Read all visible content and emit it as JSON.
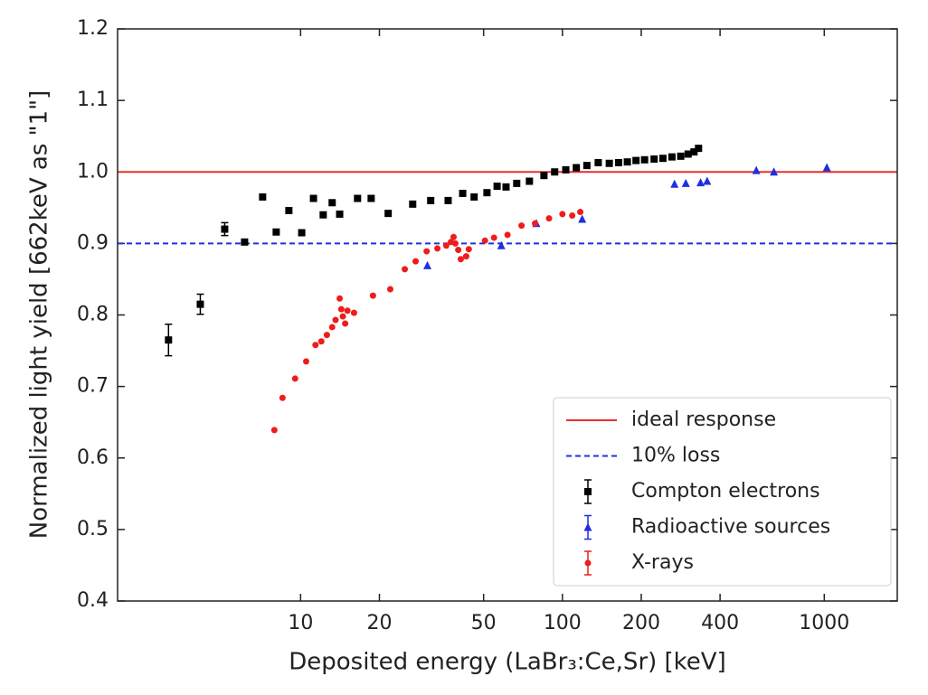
{
  "chart_data": {
    "type": "scatter",
    "xlabel": "Deposited energy (LaBr₃:Ce,Sr) [keV]",
    "ylabel": "Normalized light yield [662keV as \"1\"]",
    "xscale": "log",
    "xlim": [
      2,
      1900
    ],
    "ylim": [
      0.4,
      1.2
    ],
    "xticks": [
      10,
      20,
      50,
      100,
      200,
      400,
      1000
    ],
    "yticks": [
      0.4,
      0.5,
      0.6,
      0.7,
      0.8,
      0.9,
      {
        "value": 1,
        "label": "1.0"
      },
      1.1,
      1.2
    ],
    "legend": "lower right",
    "lines": [
      {
        "name": "ideal response",
        "value": 1,
        "color": "#e8302c",
        "dash": "solid"
      },
      {
        "name": "10% loss",
        "value": 0.9,
        "color": "#1f2fe0",
        "dash": "dashed"
      }
    ],
    "series": [
      {
        "name": "Compton electrons",
        "color": "#000000",
        "marker": "square",
        "x": [
          3.13,
          4.14,
          5.13,
          6.11,
          7.16,
          8.07,
          9.02,
          10.1,
          11.2,
          12.2,
          13.2,
          14.1,
          16.5,
          18.6,
          21.6,
          26.8,
          31.4,
          36.6,
          41.6,
          46.0,
          51.5,
          56.3,
          60.9,
          66.9,
          74.8,
          85.0,
          93.4,
          103,
          113,
          124,
          137,
          151,
          164,
          177,
          191,
          206,
          224,
          242,
          262,
          283,
          302,
          318,
          331
        ],
        "values": [
          0.765,
          0.815,
          0.92,
          0.902,
          0.965,
          0.916,
          0.946,
          0.915,
          0.963,
          0.94,
          0.957,
          0.941,
          0.963,
          0.963,
          0.942,
          0.955,
          0.96,
          0.96,
          0.97,
          0.965,
          0.971,
          0.98,
          0.979,
          0.984,
          0.987,
          0.995,
          1.0,
          1.003,
          1.006,
          1.009,
          1.013,
          1.012,
          1.013,
          1.014,
          1.016,
          1.017,
          1.018,
          1.019,
          1.021,
          1.022,
          1.025,
          1.028,
          1.033
        ],
        "errors": [
          0.022,
          0.014,
          0.009,
          null,
          null,
          null,
          null,
          null,
          null,
          null,
          null,
          null,
          null,
          null,
          null,
          null,
          null,
          null,
          null,
          null,
          null,
          null,
          null,
          null,
          null,
          null,
          null,
          null,
          null,
          null,
          null,
          null,
          null,
          null,
          null,
          null,
          null,
          null,
          null,
          null,
          null,
          null,
          null
        ]
      },
      {
        "name": "Radioactive sources",
        "color": "#1f2fe0",
        "marker": "triangle",
        "x": [
          30.5,
          58.4,
          79.5,
          119,
          268,
          296,
          337,
          357,
          550,
          642,
          1023
        ],
        "values": [
          0.869,
          0.897,
          0.928,
          0.934,
          0.983,
          0.984,
          0.985,
          0.987,
          1.002,
          1.0,
          1.006
        ]
      },
      {
        "name": "X-rays",
        "color": "#ee1c1c",
        "marker": "circle",
        "x": [
          7.94,
          8.53,
          9.53,
          10.5,
          11.4,
          12.0,
          12.6,
          13.2,
          13.6,
          14.1,
          14.3,
          14.5,
          14.8,
          15.1,
          16.0,
          18.9,
          22.0,
          25.0,
          27.5,
          30.3,
          33.3,
          36.0,
          37.5,
          38.4,
          39.0,
          40.0,
          40.9,
          42.9,
          43.9,
          50.6,
          54.8,
          61.7,
          69.8,
          78.6,
          88.9,
          100,
          109,
          117
        ],
        "values": [
          0.639,
          0.684,
          0.711,
          0.735,
          0.758,
          0.763,
          0.772,
          0.783,
          0.793,
          0.823,
          0.808,
          0.798,
          0.788,
          0.806,
          0.803,
          0.827,
          0.836,
          0.864,
          0.875,
          0.889,
          0.893,
          0.897,
          0.902,
          0.909,
          0.9,
          0.891,
          0.878,
          0.882,
          0.892,
          0.904,
          0.908,
          0.912,
          0.925,
          0.928,
          0.935,
          0.941,
          0.939,
          0.944
        ]
      }
    ]
  }
}
